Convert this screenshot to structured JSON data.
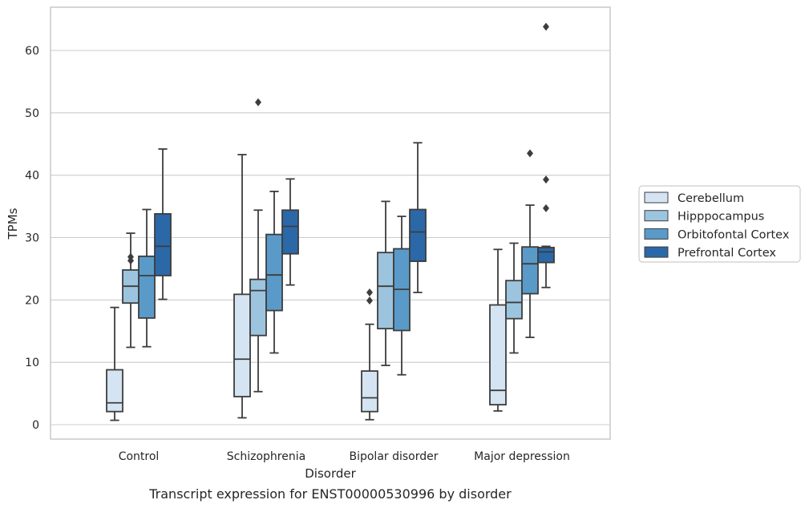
{
  "chart_data": {
    "type": "box",
    "title": "",
    "caption": "Transcript expression for ENST00000530996 by disorder",
    "xlabel": "Disorder",
    "ylabel": "TPMs",
    "ylim": [
      -2.3,
      67
    ],
    "yticks": [
      0,
      10,
      20,
      30,
      40,
      50,
      60
    ],
    "grid": "horizontal",
    "legend_position": "right",
    "categories": [
      "Control",
      "Schizophrenia",
      "Bipolar disorder",
      "Major depression"
    ],
    "series": [
      {
        "name": "Cerebellum",
        "color": "#d5e4f2",
        "boxes": [
          {
            "whislo": 0.7,
            "q1": 2.1,
            "med": 3.5,
            "q3": 8.8,
            "whishi": 18.8,
            "fliers": []
          },
          {
            "whislo": 1.1,
            "q1": 4.5,
            "med": 10.5,
            "q3": 20.9,
            "whishi": 43.3,
            "fliers": []
          },
          {
            "whislo": 0.8,
            "q1": 2.1,
            "med": 4.3,
            "q3": 8.6,
            "whishi": 16.1,
            "fliers": [
              19.9,
              21.2
            ]
          },
          {
            "whislo": 2.2,
            "q1": 3.2,
            "med": 5.5,
            "q3": 19.2,
            "whishi": 28.1,
            "fliers": []
          }
        ]
      },
      {
        "name": "Hipppocampus",
        "color": "#9cc4de",
        "boxes": [
          {
            "whislo": 12.4,
            "q1": 19.5,
            "med": 22.2,
            "q3": 24.8,
            "whishi": 30.7,
            "fliers": [
              26.3,
              26.9
            ]
          },
          {
            "whislo": 5.3,
            "q1": 14.3,
            "med": 21.5,
            "q3": 23.3,
            "whishi": 34.4,
            "fliers": [
              51.7
            ]
          },
          {
            "whislo": 9.5,
            "q1": 15.4,
            "med": 22.2,
            "q3": 27.6,
            "whishi": 35.8,
            "fliers": []
          },
          {
            "whislo": 11.5,
            "q1": 17.0,
            "med": 19.6,
            "q3": 23.1,
            "whishi": 29.1,
            "fliers": []
          }
        ]
      },
      {
        "name": "Orbitofontal Cortex",
        "color": "#5a9ac9",
        "boxes": [
          {
            "whislo": 12.5,
            "q1": 17.1,
            "med": 23.9,
            "q3": 27.0,
            "whishi": 34.5,
            "fliers": []
          },
          {
            "whislo": 11.5,
            "q1": 18.3,
            "med": 24.0,
            "q3": 30.5,
            "whishi": 37.4,
            "fliers": []
          },
          {
            "whislo": 8.0,
            "q1": 15.1,
            "med": 21.7,
            "q3": 28.2,
            "whishi": 33.4,
            "fliers": []
          },
          {
            "whislo": 14.0,
            "q1": 21.0,
            "med": 25.8,
            "q3": 28.5,
            "whishi": 35.2,
            "fliers": [
              43.5
            ]
          }
        ]
      },
      {
        "name": "Prefrontal Cortex",
        "color": "#2b68a8",
        "boxes": [
          {
            "whislo": 20.1,
            "q1": 23.9,
            "med": 28.6,
            "q3": 33.8,
            "whishi": 44.2,
            "fliers": []
          },
          {
            "whislo": 22.4,
            "q1": 27.4,
            "med": 31.8,
            "q3": 34.4,
            "whishi": 39.4,
            "fliers": []
          },
          {
            "whislo": 21.2,
            "q1": 26.2,
            "med": 30.9,
            "q3": 34.5,
            "whishi": 45.2,
            "fliers": []
          },
          {
            "whislo": 22.0,
            "q1": 26.0,
            "med": 27.7,
            "q3": 28.4,
            "whishi": 28.6,
            "fliers": [
              34.7,
              39.3,
              63.8
            ]
          }
        ]
      }
    ]
  }
}
